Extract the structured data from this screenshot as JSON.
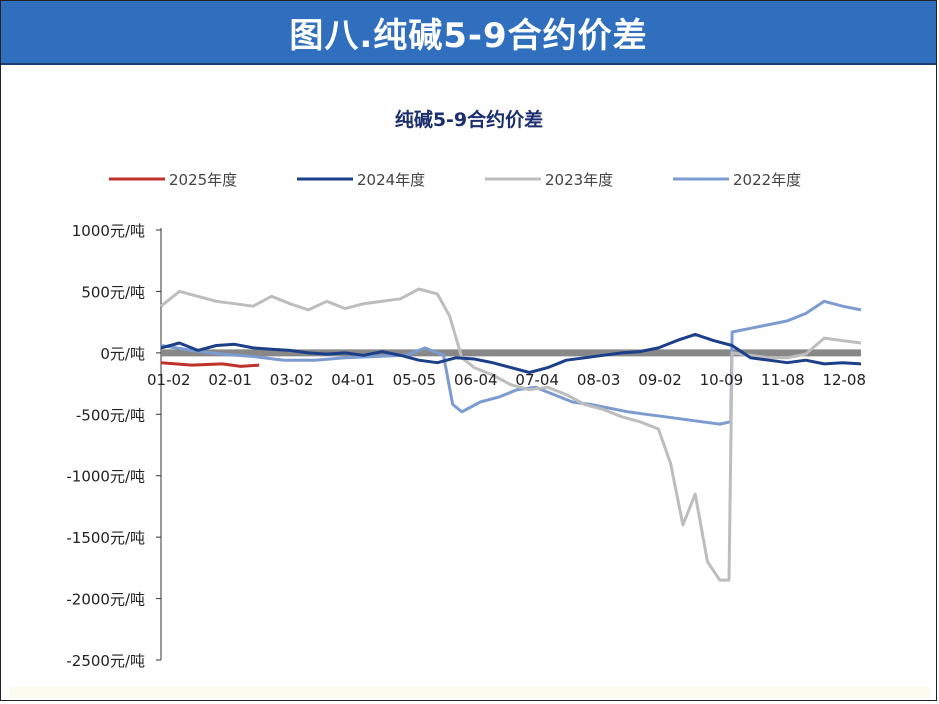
{
  "header": {
    "title": "图八.纯碱5-9合约价差"
  },
  "chart_data": {
    "type": "line",
    "title": "纯碱5-9合约价差",
    "xlabel": "",
    "ylabel": "",
    "ylim": [
      -2500,
      1000
    ],
    "y_ticks": [
      1000,
      500,
      0,
      -500,
      -1000,
      -1500,
      -2000,
      -2500
    ],
    "y_tick_labels": [
      "1000元/吨",
      "500元/吨",
      "0元/吨",
      "-500元/吨",
      "-1000元/吨",
      "-1500元/吨",
      "-2000元/吨",
      "-2500元/吨"
    ],
    "x_tick_labels": [
      "01-02",
      "02-01",
      "03-02",
      "04-01",
      "05-05",
      "06-04",
      "07-04",
      "08-03",
      "09-02",
      "10-09",
      "11-08",
      "12-08"
    ],
    "legend_position": "top",
    "grid": false,
    "zero_line": true,
    "series": [
      {
        "name": "2025年度",
        "color": "#c0312b",
        "x": [
          0,
          0.5,
          1,
          1.3,
          1.6
        ],
        "y": [
          -80,
          -100,
          -90,
          -110,
          -100
        ]
      },
      {
        "name": "2024年度",
        "color": "#1c3f8a",
        "x": [
          0,
          0.3,
          0.6,
          0.9,
          1.2,
          1.5,
          1.8,
          2.1,
          2.4,
          2.7,
          3.0,
          3.3,
          3.6,
          3.9,
          4.2,
          4.5,
          4.8,
          5.1,
          5.4,
          5.7,
          6.0,
          6.3,
          6.6,
          6.9,
          7.2,
          7.5,
          7.8,
          8.1,
          8.4,
          8.7,
          9.0,
          9.3,
          9.6,
          9.9,
          10.2,
          10.5,
          10.8,
          11.1,
          11.4
        ],
        "y": [
          40,
          80,
          20,
          60,
          70,
          40,
          30,
          20,
          0,
          -10,
          0,
          -20,
          10,
          -20,
          -60,
          -80,
          -40,
          -50,
          -80,
          -120,
          -160,
          -120,
          -60,
          -40,
          -20,
          0,
          10,
          40,
          100,
          150,
          100,
          60,
          -40,
          -60,
          -80,
          -60,
          -90,
          -80,
          -90
        ]
      },
      {
        "name": "2023年度",
        "color": "#bdbdbd",
        "x": [
          0,
          0.3,
          0.6,
          0.9,
          1.2,
          1.5,
          1.8,
          2.1,
          2.4,
          2.7,
          3.0,
          3.3,
          3.6,
          3.9,
          4.2,
          4.5,
          4.7,
          4.9,
          5.1,
          5.4,
          5.7,
          6.0,
          6.3,
          6.6,
          6.9,
          7.2,
          7.5,
          7.8,
          8.1,
          8.3,
          8.5,
          8.7,
          8.9,
          9.1,
          9.25,
          9.3,
          9.6,
          9.9,
          10.2,
          10.5,
          10.8,
          11.1,
          11.4
        ],
        "y": [
          380,
          500,
          460,
          420,
          400,
          380,
          460,
          400,
          350,
          420,
          360,
          400,
          420,
          440,
          520,
          480,
          300,
          -40,
          -120,
          -180,
          -260,
          -300,
          -280,
          -340,
          -420,
          -460,
          -520,
          -560,
          -620,
          -900,
          -1400,
          -1150,
          -1700,
          -1850,
          -1850,
          0,
          -20,
          -40,
          -40,
          -10,
          120,
          100,
          80
        ]
      },
      {
        "name": "2022年度",
        "color": "#7c9bd0",
        "x": [
          0,
          0.5,
          1,
          1.5,
          2,
          2.5,
          3,
          3.5,
          4,
          4.3,
          4.6,
          4.75,
          4.9,
          5.2,
          5.5,
          5.8,
          6.1,
          6.4,
          6.7,
          7.0,
          7.3,
          7.6,
          7.9,
          8.2,
          8.5,
          8.8,
          9.1,
          9.28,
          9.3,
          9.6,
          9.9,
          10.2,
          10.5,
          10.8,
          11.1,
          11.4
        ],
        "y": [
          60,
          20,
          -10,
          -30,
          -60,
          -60,
          -40,
          -30,
          -20,
          40,
          -20,
          -420,
          -480,
          -400,
          -360,
          -300,
          -280,
          -340,
          -400,
          -420,
          -450,
          -480,
          -500,
          -520,
          -540,
          -560,
          -580,
          -560,
          170,
          200,
          230,
          260,
          320,
          420,
          380,
          350
        ]
      }
    ]
  }
}
